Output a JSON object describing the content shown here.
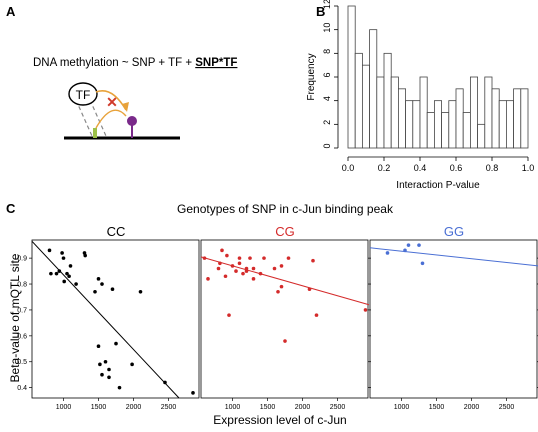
{
  "panel_a": {
    "label": "A",
    "formula_prefix": "DNA methylation ~ SNP + TF + ",
    "formula_interaction": "SNP*TF",
    "tf_label": "TF",
    "colors": {
      "arrow": "#e8a23a",
      "cross": "#d03a2a",
      "snp": "#9dc14a",
      "methyl": "#7a2a8a"
    }
  },
  "panel_b": {
    "label": "B"
  },
  "panel_c": {
    "label": "C",
    "title": "Genotypes of SNP in c-Jun binding peak",
    "ylabel": "Beta-value of mQTL site",
    "xlabel": "Expression level of c-Jun"
  },
  "chart_data": [
    {
      "type": "bar",
      "xlabel": "Interaction P-value",
      "ylabel": "Frequency",
      "xlim": [
        0,
        1
      ],
      "ylim": [
        0,
        12
      ],
      "bin_width": 0.04,
      "xticks": [
        "0.0",
        "0.2",
        "0.4",
        "0.6",
        "0.8",
        "1.0"
      ],
      "yticks": [
        "0",
        "2",
        "4",
        "6",
        "8",
        "10",
        "12"
      ],
      "values": [
        12,
        8,
        7,
        10,
        6,
        8,
        6,
        5,
        4,
        4,
        6,
        3,
        4,
        3,
        4,
        5,
        3,
        6,
        2,
        6,
        5,
        4,
        4,
        5,
        5
      ]
    },
    {
      "type": "scatter",
      "title": "CC",
      "color": "#000000",
      "xlim": [
        550,
        2950
      ],
      "ylim": [
        0.36,
        0.97
      ],
      "xticks": [
        "1000",
        "1500",
        "2000",
        "2500"
      ],
      "yticks": [
        "0.4",
        "0.5",
        "0.6",
        "0.7",
        "0.8",
        "0.9"
      ],
      "fit": {
        "x": [
          550,
          2650
        ],
        "y": [
          0.965,
          0.36
        ]
      },
      "points": [
        [
          800,
          0.93
        ],
        [
          820,
          0.84
        ],
        [
          900,
          0.84
        ],
        [
          940,
          0.85
        ],
        [
          980,
          0.92
        ],
        [
          1000,
          0.9
        ],
        [
          1010,
          0.81
        ],
        [
          1050,
          0.84
        ],
        [
          1080,
          0.83
        ],
        [
          1100,
          0.87
        ],
        [
          1180,
          0.8
        ],
        [
          1300,
          0.92
        ],
        [
          1310,
          0.91
        ],
        [
          1450,
          0.77
        ],
        [
          1500,
          0.82
        ],
        [
          1550,
          0.8
        ],
        [
          1500,
          0.56
        ],
        [
          1520,
          0.49
        ],
        [
          1550,
          0.45
        ],
        [
          1600,
          0.5
        ],
        [
          1650,
          0.44
        ],
        [
          1650,
          0.47
        ],
        [
          1700,
          0.78
        ],
        [
          1750,
          0.57
        ],
        [
          1800,
          0.4
        ],
        [
          1980,
          0.49
        ],
        [
          2100,
          0.77
        ],
        [
          2450,
          0.42
        ],
        [
          2850,
          0.38
        ]
      ]
    },
    {
      "type": "scatter",
      "title": "CG",
      "color": "#d42b2b",
      "xlim": [
        550,
        2950
      ],
      "ylim": [
        0.36,
        0.97
      ],
      "xticks": [
        "1000",
        "1500",
        "2000",
        "2500"
      ],
      "yticks": [],
      "fit": {
        "x": [
          550,
          2950
        ],
        "y": [
          0.905,
          0.72
        ]
      },
      "points": [
        [
          600,
          0.9
        ],
        [
          650,
          0.82
        ],
        [
          800,
          0.86
        ],
        [
          820,
          0.88
        ],
        [
          850,
          0.93
        ],
        [
          900,
          0.83
        ],
        [
          920,
          0.91
        ],
        [
          950,
          0.68
        ],
        [
          1000,
          0.87
        ],
        [
          1050,
          0.85
        ],
        [
          1100,
          0.9
        ],
        [
          1100,
          0.88
        ],
        [
          1150,
          0.84
        ],
        [
          1200,
          0.86
        ],
        [
          1200,
          0.85
        ],
        [
          1250,
          0.9
        ],
        [
          1300,
          0.86
        ],
        [
          1300,
          0.82
        ],
        [
          1400,
          0.84
        ],
        [
          1450,
          0.9
        ],
        [
          1600,
          0.86
        ],
        [
          1650,
          0.77
        ],
        [
          1700,
          0.87
        ],
        [
          1700,
          0.79
        ],
        [
          1750,
          0.58
        ],
        [
          1800,
          0.9
        ],
        [
          2100,
          0.78
        ],
        [
          2150,
          0.89
        ],
        [
          2200,
          0.68
        ],
        [
          2900,
          0.7
        ]
      ]
    },
    {
      "type": "scatter",
      "title": "GG",
      "color": "#4a6fd4",
      "xlim": [
        550,
        2950
      ],
      "ylim": [
        0.36,
        0.97
      ],
      "xticks": [
        "1000",
        "1500",
        "2000",
        "2500"
      ],
      "yticks": [],
      "fit": {
        "x": [
          550,
          2950
        ],
        "y": [
          0.94,
          0.87
        ]
      },
      "points": [
        [
          800,
          0.92
        ],
        [
          1050,
          0.93
        ],
        [
          1100,
          0.95
        ],
        [
          1250,
          0.95
        ],
        [
          1300,
          0.88
        ]
      ]
    }
  ]
}
